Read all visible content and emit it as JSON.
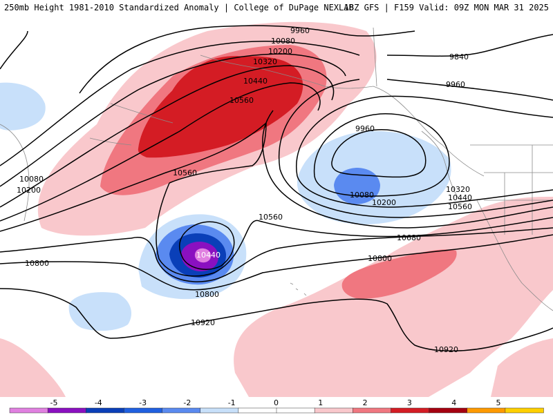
{
  "header": {
    "title_left": "250mb Height 1981-2010 Standardized Anomaly | College of DuPage NEXLAB",
    "title_right": "18Z GFS | F159 Valid: 09Z MON MAR 31 2025"
  },
  "contour_labels": [
    {
      "id": "c9960-nw",
      "text": "9960"
    },
    {
      "id": "c10080-n",
      "text": "10080"
    },
    {
      "id": "c10200-n",
      "text": "10200"
    },
    {
      "id": "c10320-n",
      "text": "10320"
    },
    {
      "id": "c10440-n",
      "text": "10440"
    },
    {
      "id": "c10560-n",
      "text": "10560"
    },
    {
      "id": "c9840-ne",
      "text": "9840"
    },
    {
      "id": "c9960-ne",
      "text": "9960"
    },
    {
      "id": "c9960-low",
      "text": "9960"
    },
    {
      "id": "c10080-low",
      "text": "10080"
    },
    {
      "id": "c10200-e",
      "text": "10200"
    },
    {
      "id": "c10320-e",
      "text": "10320"
    },
    {
      "id": "c10440-e",
      "text": "10440"
    },
    {
      "id": "c10560-e",
      "text": "10560"
    },
    {
      "id": "c10680-e",
      "text": "10680"
    },
    {
      "id": "c10080-w",
      "text": "10080"
    },
    {
      "id": "c10200-w",
      "text": "10200"
    },
    {
      "id": "c10560-mid",
      "text": "10560"
    },
    {
      "id": "c10560-c",
      "text": "10560"
    },
    {
      "id": "c10440-cutoff",
      "text": "10440"
    },
    {
      "id": "c10800-w",
      "text": "10800"
    },
    {
      "id": "c10800-s",
      "text": "10800"
    },
    {
      "id": "c10800-e",
      "text": "10800"
    },
    {
      "id": "c10920-s",
      "text": "10920"
    },
    {
      "id": "c10920-se",
      "text": "10920"
    }
  ],
  "colorbar": {
    "ticks": [
      "-5",
      "-4",
      "-3",
      "-2",
      "-1",
      "0",
      "1",
      "2",
      "3",
      "4",
      "5"
    ],
    "colors": [
      "#e080e0",
      "#8a10c0",
      "#0a3fb8",
      "#2060e0",
      "#5a8af0",
      "#c8e0fa",
      "#ffffff",
      "#ffffff",
      "#f9c8cc",
      "#f07780",
      "#d41c24",
      "#a50010",
      "#ff9a00",
      "#ffd000"
    ]
  }
}
